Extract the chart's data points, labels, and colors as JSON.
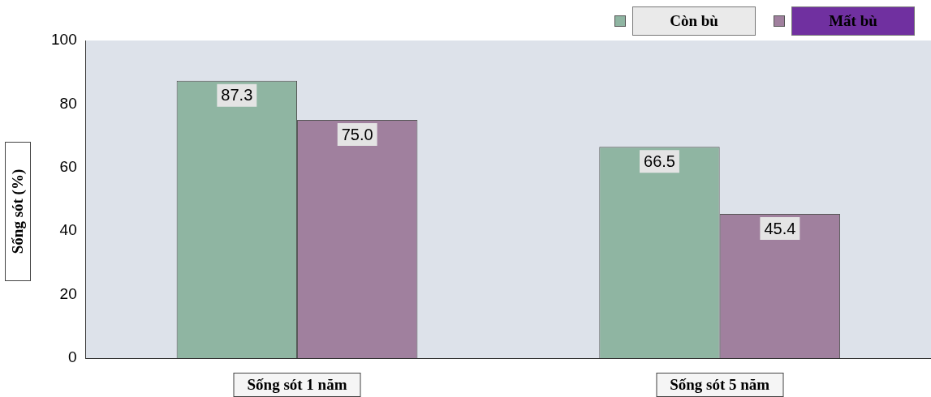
{
  "chart_data": {
    "type": "bar",
    "ylabel": "Sống sót (%)",
    "categories": [
      "Sống sót 1 năm",
      "Sống sót 5 năm"
    ],
    "series": [
      {
        "name": "Còn bù",
        "color": "#8fb5a2",
        "values": [
          87.3,
          66.5
        ],
        "value_labels": [
          "87.3",
          "66.5"
        ]
      },
      {
        "name": "Mất bù",
        "color": "#a0809e",
        "values": [
          75.0,
          45.4
        ],
        "value_labels": [
          "75.0",
          "45.4"
        ]
      }
    ],
    "ylim": [
      0,
      100
    ],
    "yticks": [
      0,
      20,
      40,
      60,
      80,
      100
    ],
    "grid": false,
    "legend": "top right"
  }
}
